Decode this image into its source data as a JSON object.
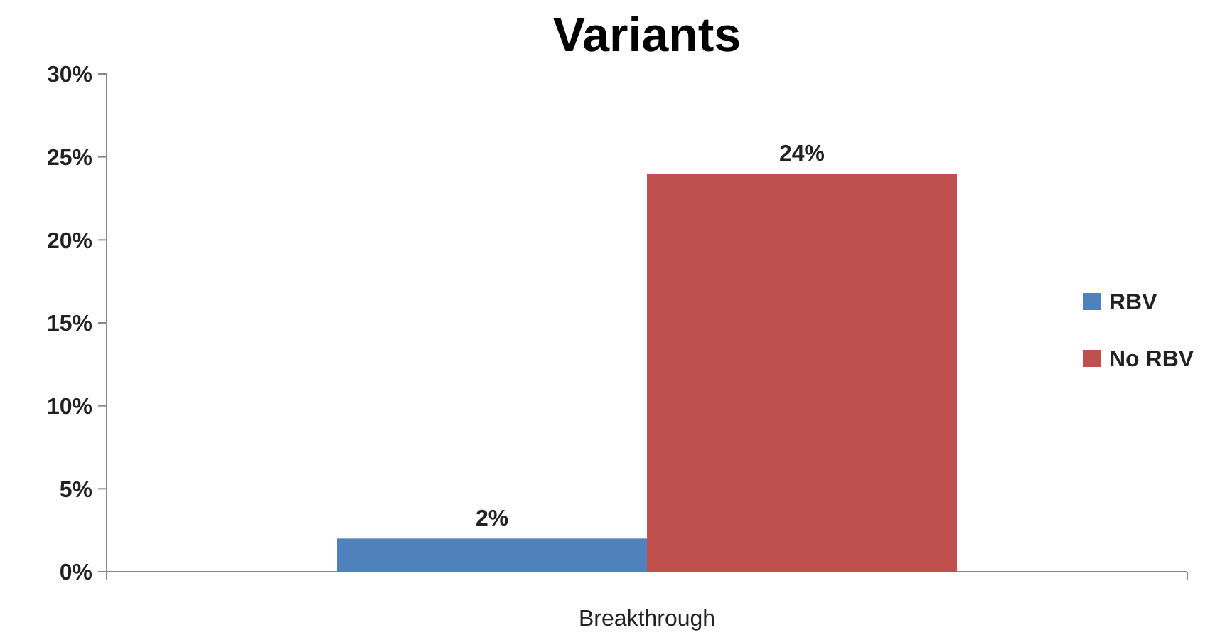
{
  "chart_data": {
    "type": "bar",
    "title": "Variants",
    "categories": [
      "Breakthrough"
    ],
    "series": [
      {
        "name": "RBV",
        "color": "#4f81bd",
        "values": [
          2
        ],
        "value_labels": [
          "2%"
        ]
      },
      {
        "name": "No RBV",
        "color": "#c0504d",
        "values": [
          24
        ],
        "value_labels": [
          "24%"
        ]
      }
    ],
    "ylim": [
      0,
      30
    ],
    "yticks": [
      {
        "value": 0,
        "label": "0%"
      },
      {
        "value": 5,
        "label": "5%"
      },
      {
        "value": 10,
        "label": "10%"
      },
      {
        "value": 15,
        "label": "15%"
      },
      {
        "value": 20,
        "label": "20%"
      },
      {
        "value": 25,
        "label": "25%"
      },
      {
        "value": 30,
        "label": "30%"
      }
    ],
    "grid": false,
    "legend": "right"
  }
}
